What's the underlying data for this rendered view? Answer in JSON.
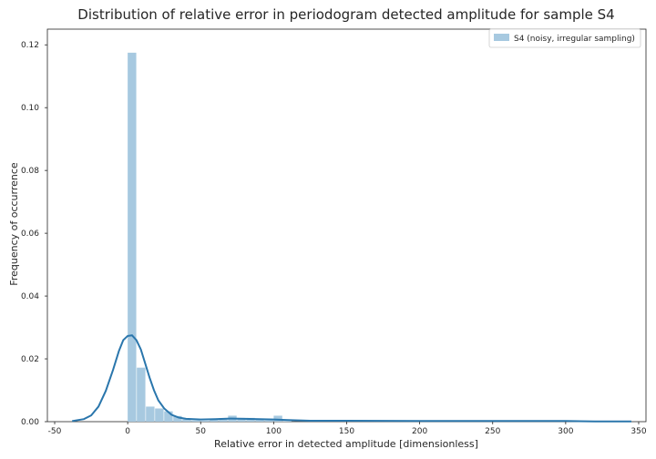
{
  "chart_data": {
    "type": "histogram",
    "title": "Distribution of relative error in periodogram detected amplitude for sample S4",
    "xlabel": "Relative error in detected amplitude [dimensionless]",
    "ylabel": "Frequency of occurrence",
    "xlim": [
      -55,
      355
    ],
    "ylim": [
      0,
      0.125
    ],
    "xticks": [
      -50,
      0,
      50,
      100,
      150,
      200,
      250,
      300,
      350
    ],
    "yticks": [
      0.0,
      0.02,
      0.04,
      0.06,
      0.08,
      0.1,
      0.12
    ],
    "ytick_labels": [
      "0.00",
      "0.02",
      "0.04",
      "0.06",
      "0.08",
      "0.10",
      "0.12"
    ],
    "grid": false,
    "legend_position": "top-right",
    "series": [
      {
        "name": "S4 (noisy, irregular sampling)",
        "kind": "histogram",
        "color": "#a7c9e0",
        "bin_width": 6.25,
        "bins": [
          {
            "x0": 0,
            "value": 0.1175
          },
          {
            "x0": 6.25,
            "value": 0.0172
          },
          {
            "x0": 12.5,
            "value": 0.0048
          },
          {
            "x0": 18.75,
            "value": 0.0042
          },
          {
            "x0": 25,
            "value": 0.0033
          },
          {
            "x0": 31.25,
            "value": 0.0018
          },
          {
            "x0": 37.5,
            "value": 0.0008
          },
          {
            "x0": 43.75,
            "value": 0.0004
          },
          {
            "x0": 50,
            "value": 0.0003
          },
          {
            "x0": 56.25,
            "value": 0.0009
          },
          {
            "x0": 62.5,
            "value": 0.0011
          },
          {
            "x0": 68.75,
            "value": 0.0019
          },
          {
            "x0": 75,
            "value": 0.0012
          },
          {
            "x0": 81.25,
            "value": 0.0012
          },
          {
            "x0": 87.5,
            "value": 0.0006
          },
          {
            "x0": 93.75,
            "value": 0.0004
          },
          {
            "x0": 100,
            "value": 0.0019
          },
          {
            "x0": 106.25,
            "value": 0.0002
          },
          {
            "x0": 143.75,
            "value": 0.0002
          },
          {
            "x0": 150,
            "value": 0.0002
          },
          {
            "x0": 218.75,
            "value": 0.0002
          },
          {
            "x0": 275,
            "value": 0.0002
          },
          {
            "x0": 300,
            "value": 0.0002
          }
        ]
      },
      {
        "name": "KDE",
        "kind": "line",
        "color": "#2a76ac",
        "points": [
          [
            -38,
            0.0002
          ],
          [
            -30,
            0.0008
          ],
          [
            -25,
            0.002
          ],
          [
            -20,
            0.0048
          ],
          [
            -15,
            0.0098
          ],
          [
            -10,
            0.0165
          ],
          [
            -6,
            0.0225
          ],
          [
            -3,
            0.026
          ],
          [
            0,
            0.0273
          ],
          [
            3,
            0.0275
          ],
          [
            6,
            0.026
          ],
          [
            9,
            0.023
          ],
          [
            12,
            0.0185
          ],
          [
            15,
            0.014
          ],
          [
            18,
            0.01
          ],
          [
            21,
            0.0068
          ],
          [
            25,
            0.0042
          ],
          [
            30,
            0.0022
          ],
          [
            35,
            0.0013
          ],
          [
            40,
            0.0009
          ],
          [
            50,
            0.0007
          ],
          [
            60,
            0.0008
          ],
          [
            70,
            0.001
          ],
          [
            80,
            0.0009
          ],
          [
            90,
            0.0008
          ],
          [
            100,
            0.0007
          ],
          [
            110,
            0.0005
          ],
          [
            125,
            0.0003
          ],
          [
            150,
            0.0003
          ],
          [
            200,
            0.0002
          ],
          [
            220,
            0.0002
          ],
          [
            250,
            0.0002
          ],
          [
            280,
            0.0002
          ],
          [
            300,
            0.0002
          ],
          [
            320,
            0.0001
          ],
          [
            345,
            0.0001
          ]
        ]
      }
    ]
  }
}
